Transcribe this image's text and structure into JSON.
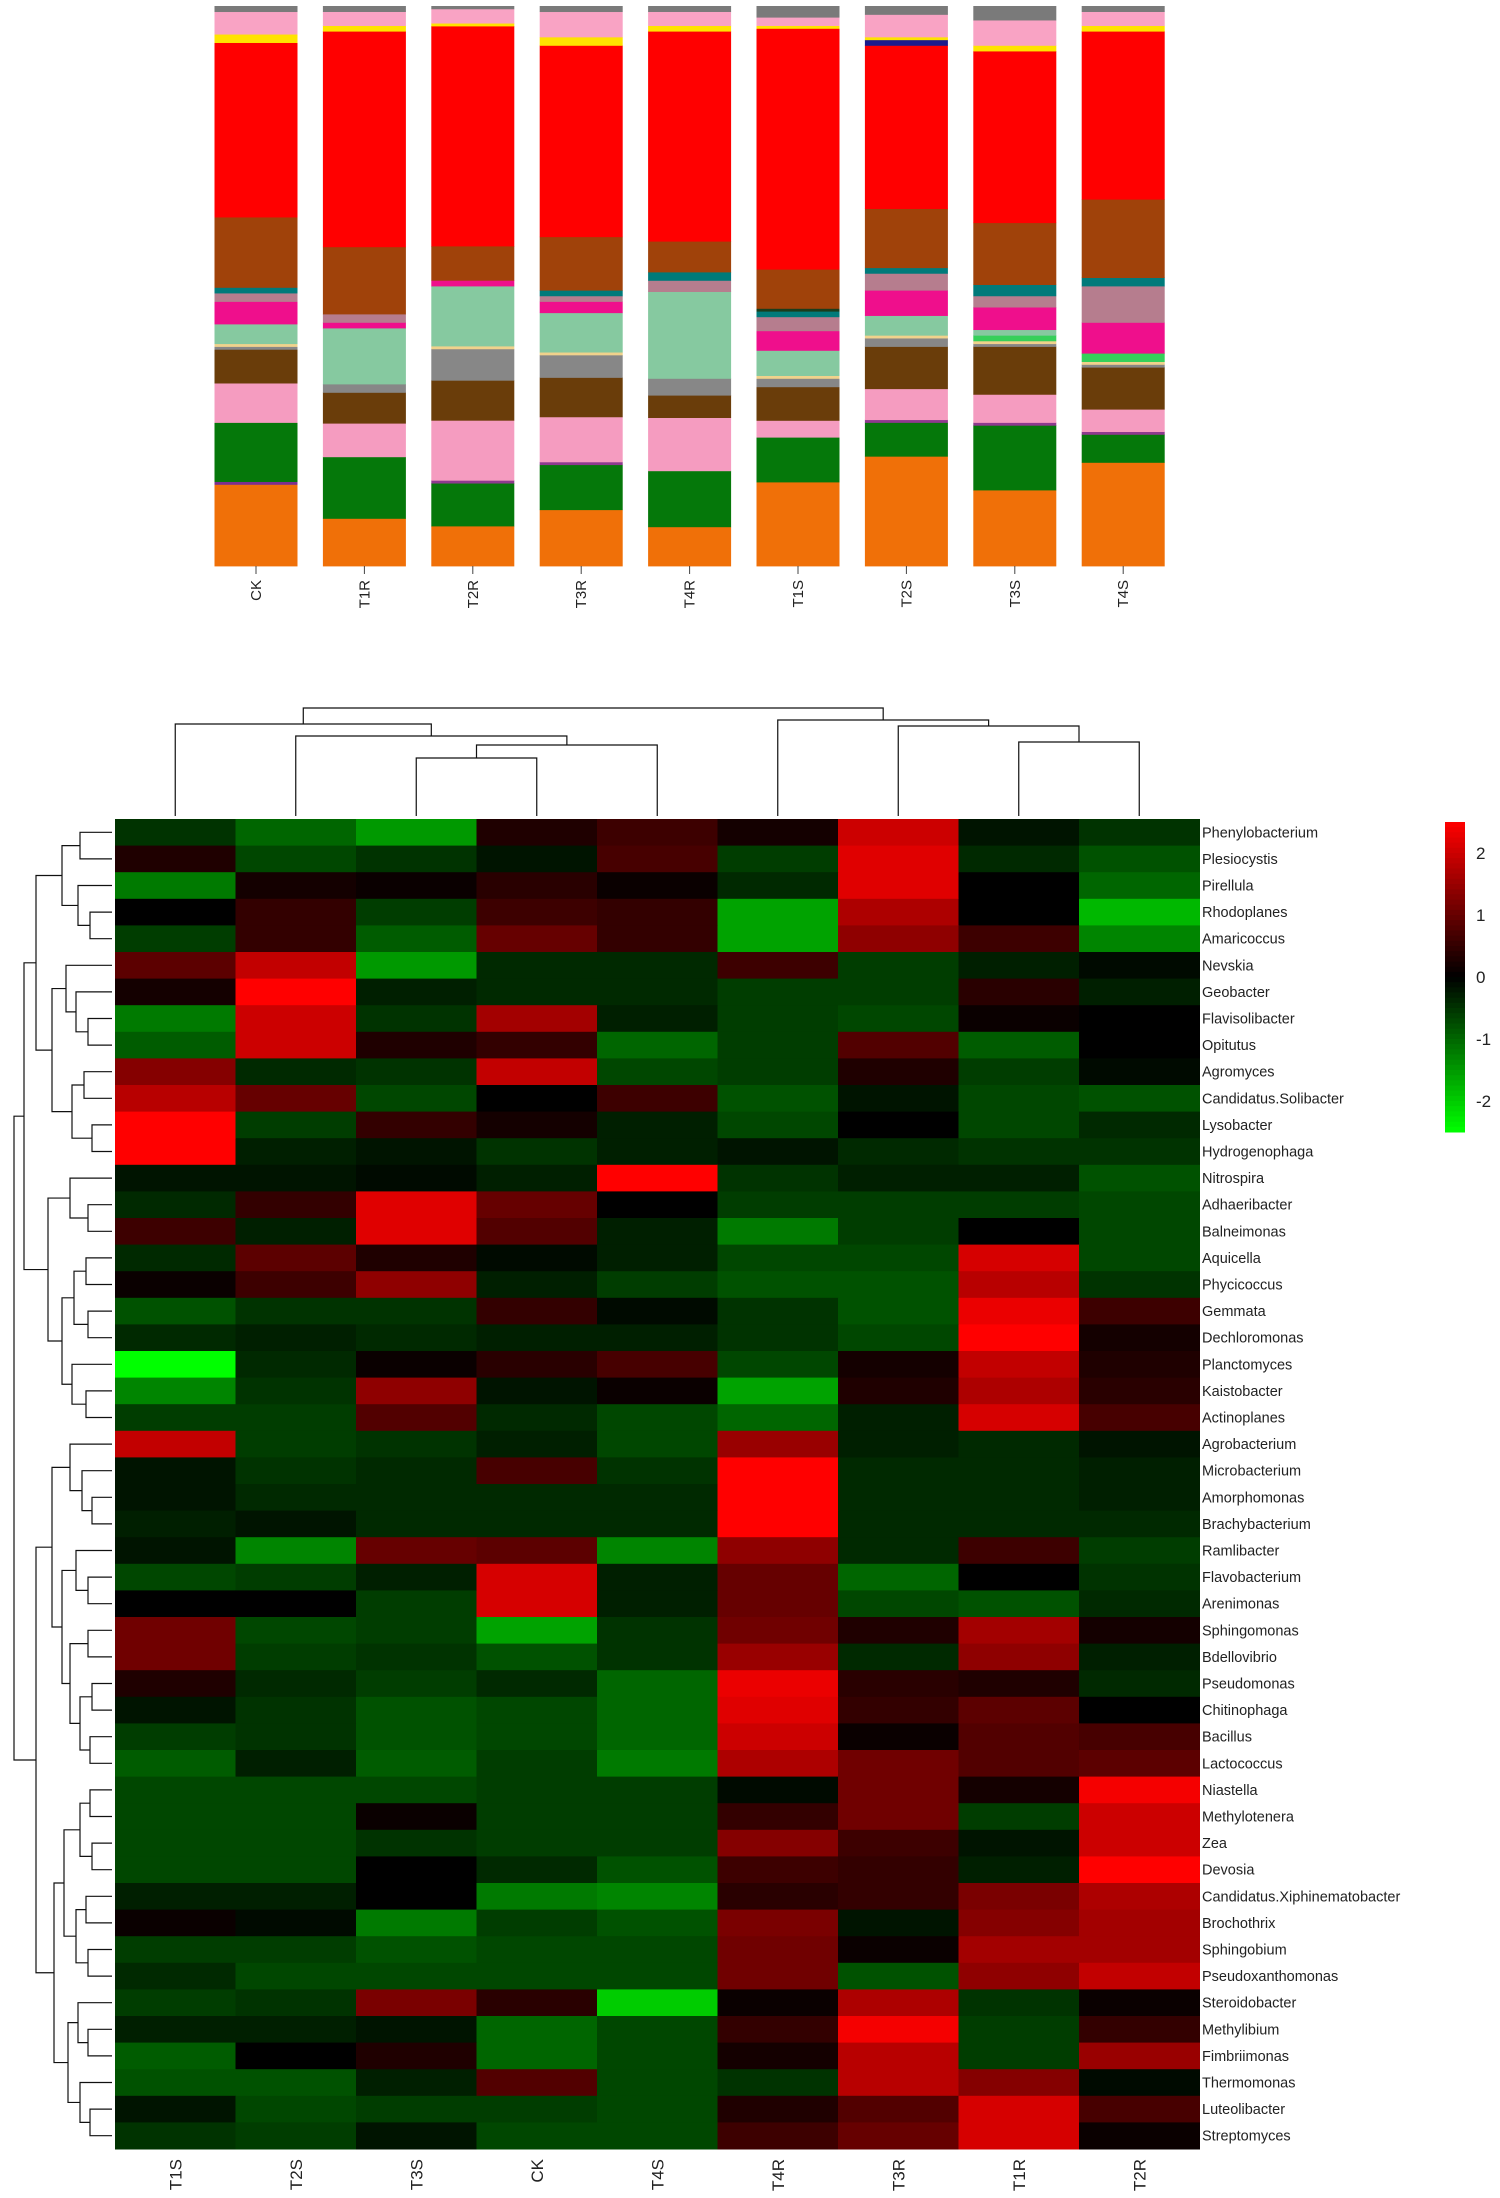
{
  "chart_data": [
    {
      "type": "bar",
      "stacked": true,
      "normalized": true,
      "categories": [
        "CK",
        "T1R",
        "T2R",
        "T3R",
        "T4R",
        "T1S",
        "T2S",
        "T3S",
        "T4S"
      ],
      "series": [
        {
          "color": "#f07008",
          "values": [
            14.5,
            8.5,
            7.0,
            10.0,
            7.0,
            15.0,
            19.5,
            13.5,
            18.5
          ]
        },
        {
          "color": "#7b2f8f",
          "values": [
            0.5,
            0,
            0,
            0,
            0,
            0,
            0,
            0,
            0
          ]
        },
        {
          "color": "#05780a",
          "values": [
            10.5,
            11.0,
            7.5,
            8.0,
            10.0,
            8.0,
            6.0,
            11.5,
            5.0
          ]
        },
        {
          "color": "#8e3a8e",
          "values": [
            0,
            0,
            0.5,
            0.5,
            0,
            0,
            0.5,
            0.5,
            0.5
          ]
        },
        {
          "color": "#f59cc0",
          "values": [
            7.0,
            6.0,
            10.5,
            8.0,
            9.5,
            3.0,
            5.5,
            5.0,
            4.0
          ]
        },
        {
          "color": "#6a3d0a",
          "values": [
            6.0,
            5.5,
            7.0,
            7.0,
            4.0,
            6.0,
            7.5,
            8.5,
            7.5
          ]
        },
        {
          "color": "#878787",
          "values": [
            0.5,
            1.5,
            5.5,
            4.0,
            3.0,
            1.5,
            1.5,
            0.5,
            0.5
          ]
        },
        {
          "color": "#f0d28c",
          "values": [
            0.5,
            0,
            0.5,
            0.5,
            0,
            0.5,
            0.5,
            0.5,
            0.5
          ]
        },
        {
          "color": "#36d05a",
          "values": [
            0,
            0,
            0,
            0,
            0,
            0,
            0,
            1.0,
            1.5
          ]
        },
        {
          "color": "#86c9a0",
          "values": [
            3.5,
            10.0,
            10.5,
            7.0,
            15.5,
            4.5,
            3.5,
            1.0,
            0
          ]
        },
        {
          "color": "#ef0f8c",
          "values": [
            4.0,
            1.0,
            1.0,
            2.0,
            0,
            3.5,
            4.5,
            4.0,
            5.5
          ]
        },
        {
          "color": "#b67d8e",
          "values": [
            1.5,
            1.5,
            0,
            1.0,
            2.0,
            2.5,
            3.0,
            2.0,
            6.5
          ]
        },
        {
          "color": "#007a7a",
          "values": [
            1.0,
            0,
            0,
            1.0,
            1.5,
            1.0,
            1.0,
            2.0,
            1.5
          ]
        },
        {
          "color": "#1c3d1c",
          "values": [
            0,
            0,
            0,
            0,
            0,
            0.5,
            0,
            0,
            0
          ]
        },
        {
          "color": "#a0420a",
          "values": [
            12.5,
            12.0,
            6.0,
            9.5,
            5.5,
            7.0,
            10.5,
            11.0,
            14.0
          ]
        },
        {
          "color": "#ff0000",
          "values": [
            31.0,
            38.5,
            38.5,
            34.0,
            37.5,
            43.0,
            29.0,
            30.5,
            30.0
          ]
        },
        {
          "color": "#1b1b8c",
          "values": [
            0,
            0,
            0,
            0,
            0,
            0,
            1.0,
            0,
            0
          ]
        },
        {
          "color": "#ffe300",
          "values": [
            1.5,
            1.0,
            0.5,
            1.5,
            1.0,
            0.5,
            0.5,
            1.0,
            1.0
          ]
        },
        {
          "color": "#f9a3c4",
          "values": [
            4.0,
            2.5,
            2.5,
            4.5,
            2.5,
            1.5,
            4.0,
            4.5,
            2.5
          ]
        },
        {
          "color": "#7a7a7a",
          "values": [
            1.0,
            1.0,
            0.5,
            1.0,
            1.0,
            2.0,
            1.5,
            2.5,
            1.0
          ]
        }
      ]
    },
    {
      "type": "heatmap",
      "columns": [
        "T1S",
        "T2S",
        "T3S",
        "CK",
        "T4S",
        "T4R",
        "T3R",
        "T1R",
        "T2R"
      ],
      "rows": [
        "Phenylobacterium",
        "Plesiocystis",
        "Pirellula",
        "Rhodoplanes",
        "Amaricoccus",
        "Nevskia",
        "Geobacter",
        "Flavisolibacter",
        "Opitutus",
        "Agromyces",
        "Candidatus.Solibacter",
        "Lysobacter",
        "Hydrogenophaga",
        "Nitrospira",
        "Adhaeribacter",
        "Balneimonas",
        "Aquicella",
        "Phycicoccus",
        "Gemmata",
        "Dechloromonas",
        "Planctomyces",
        "Kaistobacter",
        "Actinoplanes",
        "Agrobacterium",
        "Microbacterium",
        "Amorphomonas",
        "Brachybacterium",
        "Ramlibacter",
        "Flavobacterium",
        "Arenimonas",
        "Sphingomonas",
        "Bdellovibrio",
        "Pseudomonas",
        "Chitinophaga",
        "Bacillus",
        "Lactococcus",
        "Niastella",
        "Methylotenera",
        "Zea",
        "Devosia",
        "Candidatus.Xiphinematobacter",
        "Brochothrix",
        "Sphingobium",
        "Pseudoxanthomonas",
        "Steroidobacter",
        "Methylibium",
        "Fimbriimonas",
        "Thermomonas",
        "Luteolibacter",
        "Streptomyces"
      ],
      "values": [
        [
          -0.5,
          -1.0,
          -1.5,
          0.3,
          0.6,
          0.2,
          2.0,
          -0.2,
          -0.5
        ],
        [
          0.3,
          -0.7,
          -0.5,
          -0.2,
          0.7,
          -0.6,
          2.2,
          -0.4,
          -0.8
        ],
        [
          -1.2,
          0.2,
          0.1,
          0.4,
          0.1,
          -0.4,
          2.2,
          0.0,
          -1.0
        ],
        [
          0.0,
          0.5,
          -0.6,
          0.6,
          0.5,
          -1.6,
          1.7,
          0.0,
          -1.8
        ],
        [
          -0.6,
          0.5,
          -0.9,
          1.0,
          0.5,
          -1.6,
          1.4,
          0.6,
          -1.3
        ],
        [
          0.9,
          1.9,
          -1.5,
          -0.4,
          -0.4,
          0.6,
          -0.6,
          -0.3,
          -0.1
        ],
        [
          0.2,
          2.6,
          -0.3,
          -0.4,
          -0.4,
          -0.6,
          -0.6,
          0.4,
          -0.3
        ],
        [
          -1.2,
          2.0,
          -0.5,
          1.6,
          -0.3,
          -0.6,
          -0.7,
          0.1,
          0.0
        ],
        [
          -0.9,
          2.0,
          0.3,
          0.5,
          -1.0,
          -0.6,
          0.8,
          -0.9,
          0.0
        ],
        [
          1.3,
          -0.4,
          -0.5,
          1.9,
          -0.7,
          -0.6,
          0.3,
          -0.6,
          -0.1
        ],
        [
          1.8,
          1.0,
          -0.7,
          0.0,
          0.6,
          -0.8,
          -0.2,
          -0.7,
          -0.8
        ],
        [
          2.6,
          -0.6,
          0.5,
          0.2,
          -0.3,
          -0.7,
          0.0,
          -0.7,
          -0.4
        ],
        [
          2.6,
          -0.3,
          -0.2,
          -0.5,
          -0.3,
          -0.2,
          -0.4,
          -0.5,
          -0.5
        ],
        [
          -0.2,
          -0.2,
          -0.1,
          -0.3,
          2.6,
          -0.5,
          -0.3,
          -0.3,
          -0.8
        ],
        [
          -0.4,
          0.5,
          2.2,
          1.0,
          0.0,
          -0.6,
          -0.6,
          -0.6,
          -0.7
        ],
        [
          0.6,
          -0.3,
          2.2,
          0.8,
          -0.3,
          -1.2,
          -0.6,
          0.0,
          -0.7
        ],
        [
          -0.4,
          0.9,
          0.3,
          -0.1,
          -0.3,
          -0.7,
          -0.7,
          2.1,
          -0.7
        ],
        [
          0.1,
          0.6,
          1.4,
          -0.3,
          -0.6,
          -0.8,
          -0.8,
          1.8,
          -0.5
        ],
        [
          -0.8,
          -0.5,
          -0.5,
          0.5,
          -0.1,
          -0.5,
          -0.8,
          2.3,
          0.6
        ],
        [
          -0.4,
          -0.3,
          -0.4,
          -0.3,
          -0.3,
          -0.5,
          -0.7,
          2.6,
          0.2
        ],
        [
          -2.5,
          -0.4,
          0.1,
          0.4,
          0.7,
          -0.7,
          0.2,
          1.9,
          0.3
        ],
        [
          -1.3,
          -0.5,
          1.4,
          -0.2,
          0.1,
          -1.6,
          0.3,
          1.7,
          0.4
        ],
        [
          -0.6,
          -0.6,
          0.8,
          -0.4,
          -0.7,
          -1.0,
          -0.3,
          2.1,
          0.7
        ],
        [
          1.9,
          -0.6,
          -0.5,
          -0.3,
          -0.7,
          1.5,
          -0.3,
          -0.4,
          -0.2
        ],
        [
          -0.2,
          -0.5,
          -0.4,
          0.7,
          -0.5,
          2.6,
          -0.4,
          -0.4,
          -0.3
        ],
        [
          -0.2,
          -0.4,
          -0.4,
          -0.4,
          -0.4,
          2.6,
          -0.4,
          -0.4,
          -0.3
        ],
        [
          -0.3,
          -0.2,
          -0.4,
          -0.4,
          -0.4,
          2.6,
          -0.4,
          -0.4,
          -0.4
        ],
        [
          -0.2,
          -1.3,
          1.0,
          0.9,
          -1.3,
          1.4,
          -0.4,
          0.6,
          -0.6
        ],
        [
          -0.7,
          -0.6,
          -0.3,
          2.1,
          -0.3,
          1.0,
          -1.0,
          0.0,
          -0.5
        ],
        [
          0.0,
          0.0,
          -0.6,
          2.1,
          -0.3,
          1.0,
          -0.7,
          -0.8,
          -0.4
        ],
        [
          1.1,
          -0.7,
          -0.6,
          -1.6,
          -0.5,
          1.1,
          0.3,
          1.6,
          0.2
        ],
        [
          1.1,
          -0.6,
          -0.5,
          -0.8,
          -0.5,
          1.5,
          -0.4,
          1.4,
          -0.3
        ],
        [
          0.3,
          -0.4,
          -0.6,
          -0.4,
          -1.0,
          2.3,
          0.4,
          0.3,
          -0.4
        ],
        [
          -0.2,
          -0.5,
          -0.8,
          -0.7,
          -1.0,
          2.2,
          0.5,
          0.9,
          0.0
        ],
        [
          -0.6,
          -0.5,
          -0.8,
          -0.7,
          -1.0,
          2.0,
          0.1,
          0.8,
          0.7
        ],
        [
          -0.9,
          -0.3,
          -0.9,
          -0.6,
          -1.2,
          1.7,
          1.1,
          0.8,
          0.9
        ],
        [
          -0.7,
          -0.7,
          -0.7,
          -0.6,
          -0.6,
          -0.1,
          1.1,
          0.2,
          2.4
        ],
        [
          -0.7,
          -0.7,
          0.1,
          -0.6,
          -0.6,
          0.5,
          1.1,
          -0.6,
          2.0
        ],
        [
          -0.7,
          -0.7,
          -0.5,
          -0.6,
          -0.6,
          1.3,
          0.6,
          -0.2,
          2.0
        ],
        [
          -0.7,
          -0.7,
          0.0,
          -0.4,
          -0.8,
          0.6,
          0.5,
          -0.3,
          2.6
        ],
        [
          -0.3,
          -0.3,
          0.0,
          -1.2,
          -1.3,
          0.4,
          0.5,
          1.2,
          1.7
        ],
        [
          0.1,
          -0.1,
          -1.2,
          -0.6,
          -0.8,
          1.2,
          -0.2,
          1.3,
          1.6
        ],
        [
          -0.6,
          -0.6,
          -0.8,
          -0.7,
          -0.7,
          1.1,
          0.1,
          1.6,
          1.6
        ],
        [
          -0.4,
          -0.7,
          -0.7,
          -0.7,
          -0.7,
          1.1,
          -0.8,
          1.4,
          1.9
        ],
        [
          -0.6,
          -0.5,
          1.2,
          0.4,
          -2.0,
          0.1,
          1.7,
          -0.5,
          0.1
        ],
        [
          -0.3,
          -0.3,
          -0.2,
          -1.0,
          -0.7,
          0.5,
          2.4,
          -0.6,
          0.5
        ],
        [
          -0.9,
          0.0,
          0.3,
          -1.0,
          -0.7,
          0.2,
          1.8,
          -0.6,
          1.5
        ],
        [
          -0.8,
          -0.8,
          -0.3,
          0.8,
          -0.7,
          -0.5,
          1.8,
          1.3,
          -0.1
        ],
        [
          -0.2,
          -0.7,
          -0.6,
          -0.6,
          -0.7,
          0.3,
          0.8,
          2.1,
          0.7
        ],
        [
          -0.5,
          -0.6,
          -0.2,
          -0.7,
          -0.7,
          0.6,
          1.0,
          2.1,
          0.1
        ]
      ],
      "colorscale": {
        "min": -2.5,
        "max": 2.5,
        "low_color": "#00ff00",
        "mid_color": "#000000",
        "high_color": "#ff0000",
        "ticks": [
          "2",
          "1",
          "0",
          "-1",
          "-2"
        ]
      },
      "column_dendrogram": true,
      "row_dendrogram": true
    }
  ]
}
